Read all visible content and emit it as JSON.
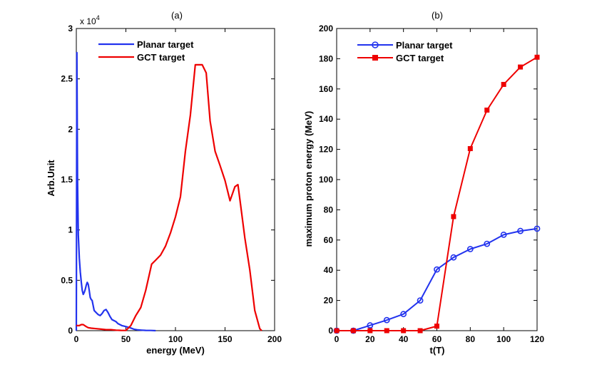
{
  "chart_data": [
    {
      "type": "line",
      "panel_label": "(a)",
      "title": "",
      "xlabel": "energy (MeV)",
      "ylabel": "Arb.Unit",
      "xlim": [
        0,
        200
      ],
      "ylim": [
        0,
        3
      ],
      "y_multiplier": "x 10",
      "y_multiplier_exponent": "4",
      "xticks": [
        "0",
        "50",
        "100",
        "150",
        "200"
      ],
      "yticks": [
        "0",
        "0.5",
        "1",
        "1.5",
        "2",
        "2.5",
        "3"
      ],
      "xtick_values": [
        0,
        50,
        100,
        150,
        200
      ],
      "ytick_values": [
        0,
        0.5,
        1,
        1.5,
        2,
        2.5,
        3
      ],
      "legend_position": "top-left",
      "series": [
        {
          "name": "Planar target",
          "color": "#2233ee",
          "marker": "none",
          "x": [
            0,
            0.6,
            1.2,
            2,
            3,
            4,
            5,
            6,
            7,
            8,
            9,
            10,
            11,
            12,
            13,
            14,
            15,
            16,
            17,
            18,
            19,
            20,
            22,
            24,
            26,
            28,
            30,
            32,
            34,
            36,
            38,
            40,
            42,
            44,
            46,
            48,
            50,
            54,
            58,
            62,
            66,
            70,
            75,
            80
          ],
          "y": [
            0,
            2.76,
            1.5,
            0.95,
            0.72,
            0.58,
            0.48,
            0.4,
            0.36,
            0.38,
            0.41,
            0.45,
            0.48,
            0.46,
            0.4,
            0.33,
            0.31,
            0.3,
            0.25,
            0.2,
            0.19,
            0.18,
            0.16,
            0.15,
            0.17,
            0.2,
            0.21,
            0.18,
            0.14,
            0.11,
            0.1,
            0.09,
            0.07,
            0.06,
            0.05,
            0.045,
            0.04,
            0.03,
            0.015,
            0.008,
            0.005,
            0.003,
            0.002,
            0
          ]
        },
        {
          "name": "GCT target",
          "color": "#ee0000",
          "marker": "none",
          "x": [
            0,
            3,
            5,
            7,
            10,
            12,
            15,
            20,
            25,
            30,
            35,
            40,
            45,
            50,
            55,
            60,
            65,
            70,
            76,
            80,
            85,
            90,
            95,
            100,
            105,
            110,
            115,
            120,
            125,
            127,
            131,
            135,
            140,
            145,
            150,
            155,
            160,
            163,
            165,
            170,
            175,
            180,
            185,
            187
          ],
          "y": [
            0.05,
            0.05,
            0.06,
            0.06,
            0.04,
            0.03,
            0.025,
            0.02,
            0.015,
            0.01,
            0.01,
            0.005,
            0.003,
            0.002,
            0.05,
            0.15,
            0.23,
            0.4,
            0.66,
            0.7,
            0.75,
            0.84,
            0.97,
            1.13,
            1.33,
            1.78,
            2.14,
            2.64,
            2.64,
            2.64,
            2.56,
            2.08,
            1.78,
            1.64,
            1.49,
            1.29,
            1.43,
            1.45,
            1.3,
            0.92,
            0.6,
            0.2,
            0.02,
            0
          ]
        }
      ]
    },
    {
      "type": "line",
      "panel_label": "(b)",
      "title": "",
      "xlabel": "t(T)",
      "ylabel": "maximum proton energy (MeV)",
      "xlim": [
        0,
        120
      ],
      "ylim": [
        0,
        200
      ],
      "xticks": [
        "0",
        "20",
        "40",
        "60",
        "80",
        "100",
        "120"
      ],
      "yticks": [
        "0",
        "20",
        "40",
        "60",
        "80",
        "100",
        "120",
        "140",
        "160",
        "180",
        "200"
      ],
      "xtick_values": [
        0,
        20,
        40,
        60,
        80,
        100,
        120
      ],
      "ytick_values": [
        0,
        20,
        40,
        60,
        80,
        100,
        120,
        140,
        160,
        180,
        200
      ],
      "legend_position": "top-left",
      "series": [
        {
          "name": "Planar target",
          "color": "#2233ee",
          "marker": "circle",
          "x": [
            0,
            10,
            20,
            30,
            40,
            50,
            60,
            70,
            80,
            90,
            100,
            110,
            120
          ],
          "y": [
            0,
            0,
            3.5,
            7,
            11,
            20,
            40.5,
            48.5,
            54,
            57.5,
            63.5,
            66,
            67.5
          ]
        },
        {
          "name": "GCT target",
          "color": "#ee0000",
          "marker": "square",
          "x": [
            0,
            10,
            20,
            30,
            40,
            50,
            60,
            70,
            80,
            90,
            100,
            110,
            120
          ],
          "y": [
            0,
            0,
            0,
            0,
            0,
            0,
            3,
            75.5,
            120.5,
            146,
            163,
            174.5,
            181
          ]
        }
      ]
    }
  ]
}
